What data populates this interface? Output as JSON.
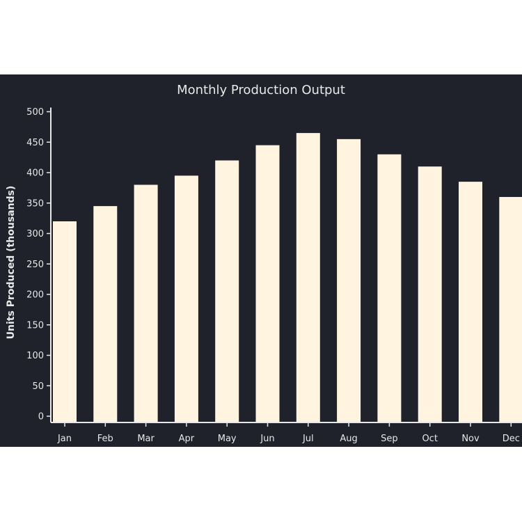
{
  "chart_data": {
    "type": "bar",
    "title": "Monthly Production Output",
    "xlabel": "",
    "ylabel": "Units Produced (thousands)",
    "categories": [
      "Jan",
      "Feb",
      "Mar",
      "Apr",
      "May",
      "Jun",
      "Jul",
      "Aug",
      "Sep",
      "Oct",
      "Nov",
      "Dec"
    ],
    "values": [
      320,
      345,
      380,
      395,
      420,
      445,
      465,
      455,
      430,
      410,
      385,
      360
    ],
    "ylim": [
      0,
      500
    ],
    "yticks": [
      0,
      50,
      100,
      150,
      200,
      250,
      300,
      350,
      400,
      450,
      500
    ],
    "grid": false,
    "colors": {
      "background": "#1f212b",
      "bar": "#fff4e0",
      "axis": "#e8e8e8",
      "text": "#e8e8e8"
    }
  }
}
